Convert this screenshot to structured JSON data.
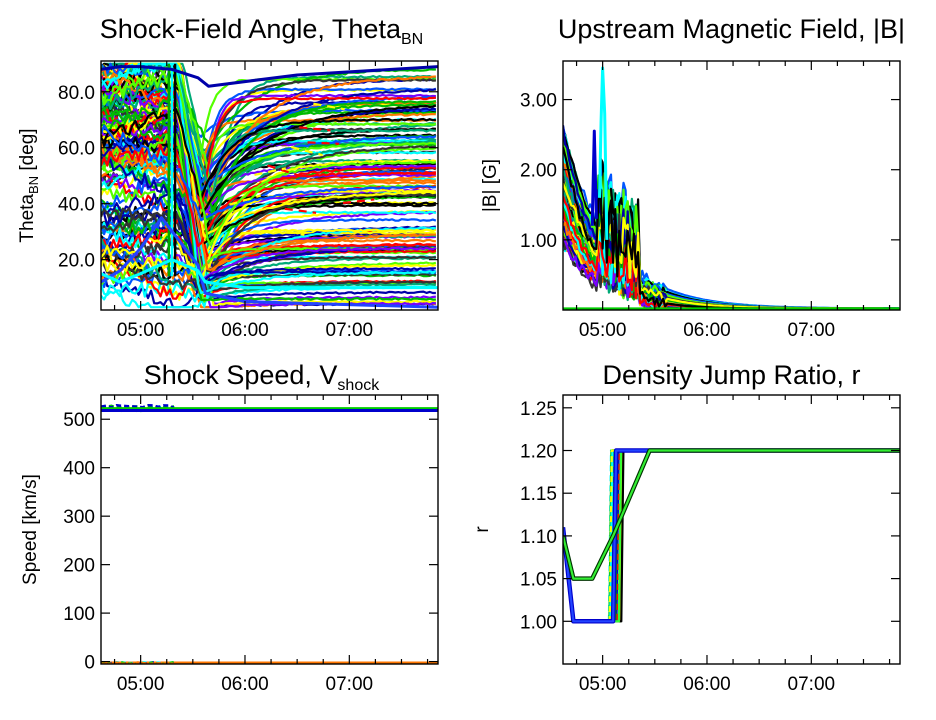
{
  "chart_data": [
    {
      "id": "theta",
      "type": "line",
      "title": "Shock-Field Angle, Theta",
      "title_sub": "BN",
      "xlabel": "",
      "ylabel": "Theta",
      "ylabel_sub": "BN",
      "ylabel_suffix": " [deg]",
      "x_unit": "UT hours",
      "xlim": [
        4.62,
        7.85
      ],
      "ylim": [
        2,
        91
      ],
      "x_ticks": [
        {
          "v": 5,
          "label": "05:00"
        },
        {
          "v": 6,
          "label": "06:00"
        },
        {
          "v": 7,
          "label": "07:00"
        }
      ],
      "y_ticks": [
        {
          "v": 20,
          "label": "20.0"
        },
        {
          "v": 40,
          "label": "40.0"
        },
        {
          "v": 60,
          "label": "60.0"
        },
        {
          "v": 80,
          "label": "80.0"
        }
      ],
      "series_count": 140,
      "series_colors": [
        "#0000aa",
        "#00bb00",
        "#00ffff",
        "#ff0000",
        "#ffff00",
        "#000000",
        "#0055ff",
        "#55ff00",
        "#ff7700",
        "#7700ff",
        "#00aa77",
        "#333333"
      ],
      "series": [
        {
          "x": [
            4.62,
            4.8,
            5.0,
            5.2,
            5.55,
            5.62,
            6.0,
            7.85
          ],
          "y": [
            12,
            16,
            24,
            35,
            18,
            8,
            5,
            3
          ]
        },
        {
          "x": [
            4.62,
            4.8,
            5.0,
            5.3,
            5.55,
            5.62,
            6.0,
            7.85
          ],
          "y": [
            15,
            12,
            15,
            20,
            16,
            12,
            10,
            10
          ]
        },
        {
          "x": [
            4.62,
            4.8,
            5.0,
            5.3,
            5.55,
            5.65,
            6.5,
            7.85
          ],
          "y": [
            88,
            89,
            89,
            88,
            85,
            82,
            86,
            89
          ]
        }
      ]
    },
    {
      "id": "bfield",
      "type": "line",
      "title": "Upstream Magnetic Field, |B|",
      "xlabel": "",
      "ylabel": "|B| [G]",
      "xlim": [
        4.62,
        7.85
      ],
      "ylim": [
        0,
        3.55
      ],
      "x_ticks": [
        {
          "v": 5,
          "label": "05:00"
        },
        {
          "v": 6,
          "label": "06:00"
        },
        {
          "v": 7,
          "label": "07:00"
        }
      ],
      "y_ticks": [
        {
          "v": 1,
          "label": "1.00"
        },
        {
          "v": 2,
          "label": "2.00"
        },
        {
          "v": 3,
          "label": "3.00"
        }
      ],
      "series_count": 90,
      "series_colors": [
        "#0000aa",
        "#00bb00",
        "#00ffff",
        "#ff0000",
        "#ffff00",
        "#000000",
        "#0055ff",
        "#55ff00",
        "#ff7700",
        "#7700ff",
        "#00aa77",
        "#333333"
      ],
      "peak": {
        "x": 5.0,
        "y": 3.45
      },
      "series": [
        {
          "x": [
            4.62,
            4.8,
            5.0,
            5.2,
            5.5,
            5.7,
            6.0,
            7.85
          ],
          "y": [
            2.5,
            1.9,
            1.2,
            0.6,
            0.15,
            0.05,
            0.03,
            0.02
          ]
        },
        {
          "x": [
            4.62,
            4.8,
            5.0,
            5.2,
            5.5,
            5.7,
            6.0,
            7.85
          ],
          "y": [
            1.4,
            0.9,
            0.5,
            0.2,
            0.06,
            0.03,
            0.02,
            0.02
          ]
        }
      ]
    },
    {
      "id": "vshock",
      "type": "line",
      "title": "Shock Speed, V",
      "title_sub": "shock",
      "xlabel": "",
      "ylabel": "Speed [km/s]",
      "xlim": [
        4.62,
        7.85
      ],
      "ylim": [
        -5,
        550
      ],
      "x_ticks": [
        {
          "v": 5,
          "label": "05:00"
        },
        {
          "v": 6,
          "label": "06:00"
        },
        {
          "v": 7,
          "label": "07:00"
        }
      ],
      "y_ticks": [
        {
          "v": 0,
          "label": "0"
        },
        {
          "v": 100,
          "label": "100"
        },
        {
          "v": 200,
          "label": "200"
        },
        {
          "v": 300,
          "label": "300"
        },
        {
          "v": 400,
          "label": "400"
        },
        {
          "v": 500,
          "label": "500"
        }
      ],
      "series_colors": [
        "#00cc00",
        "#0000cc",
        "#ff7700",
        "#00ffff"
      ],
      "series": [
        {
          "x": [
            4.62,
            7.85
          ],
          "y": [
            522,
            522
          ]
        },
        {
          "x": [
            4.62,
            7.85
          ],
          "y": [
            518,
            518
          ]
        },
        {
          "x": [
            4.62,
            7.85
          ],
          "y": [
            -3,
            -3
          ]
        }
      ]
    },
    {
      "id": "ratio",
      "type": "line",
      "title": "Density Jump Ratio, r",
      "xlabel": "",
      "ylabel": "r",
      "xlim": [
        4.62,
        7.85
      ],
      "ylim": [
        0.95,
        1.265
      ],
      "x_ticks": [
        {
          "v": 5,
          "label": "05:00"
        },
        {
          "v": 6,
          "label": "06:00"
        },
        {
          "v": 7,
          "label": "07:00"
        }
      ],
      "y_ticks": [
        {
          "v": 1.0,
          "label": "1.00"
        },
        {
          "v": 1.05,
          "label": "1.05"
        },
        {
          "v": 1.1,
          "label": "1.10"
        },
        {
          "v": 1.15,
          "label": "1.15"
        },
        {
          "v": 1.2,
          "label": "1.20"
        },
        {
          "v": 1.25,
          "label": "1.25"
        }
      ],
      "series_colors": [
        "#0000cc",
        "#008800",
        "#00bb00",
        "#00ffff",
        "#ffff00",
        "#ff0000",
        "#000000",
        "#33ff33"
      ],
      "series": [
        {
          "x": [
            4.62,
            4.72,
            5.1,
            5.13,
            7.85
          ],
          "y": [
            1.11,
            1.0,
            1.0,
            1.2,
            1.2
          ]
        },
        {
          "x": [
            4.62,
            4.72,
            4.9,
            5.1,
            5.45,
            7.85
          ],
          "y": [
            1.1,
            1.05,
            1.05,
            1.1,
            1.2,
            1.2
          ]
        }
      ]
    }
  ]
}
